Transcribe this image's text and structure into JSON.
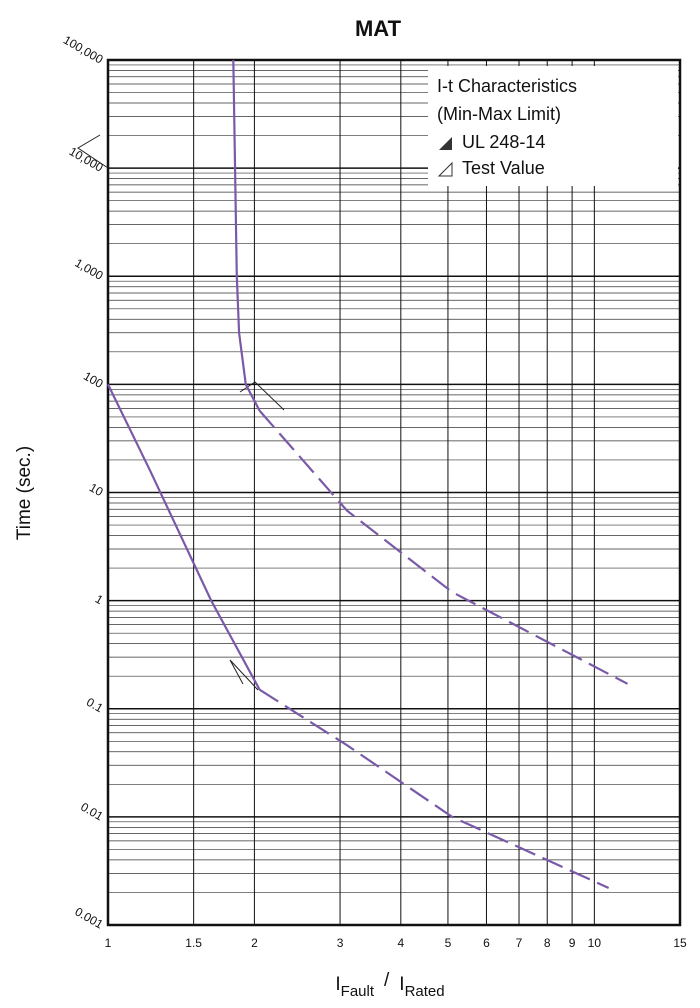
{
  "chart_data": {
    "type": "line",
    "title": "MAT",
    "ylabel": "Time (sec.)",
    "xlabel": {
      "i1": "I",
      "sub1": "Fault",
      "slash": "/",
      "i2": "I",
      "sub2": "Rated"
    },
    "xscale": "log",
    "yscale": "log",
    "xlim": [
      1,
      15
    ],
    "ylim": [
      0.001,
      100000
    ],
    "xticks": [
      1,
      1.5,
      2,
      3,
      4,
      5,
      6,
      7,
      8,
      9,
      10,
      15
    ],
    "yticks": [
      {
        "value": 100000,
        "label": "100,000"
      },
      {
        "value": 10000,
        "label": "10,000"
      },
      {
        "value": 1000,
        "label": "1,000"
      },
      100,
      10,
      1,
      0.1,
      0.01,
      0.001
    ],
    "grid": true,
    "legend": {
      "title": "I-t Characteristics",
      "subtitle": "(Min-Max Limit)",
      "items": [
        "UL 248-14",
        "Test Value"
      ]
    },
    "series": [
      {
        "color": "#7a5aa8",
        "style": "solid",
        "x": [
          1.81,
          1.84,
          1.86,
          1.92,
          2.05
        ],
        "values": [
          100000,
          1000,
          300,
          100,
          57
        ]
      },
      {
        "color": "#7a5aa8",
        "style": "dashed",
        "x": [
          2.05,
          3.1,
          5.1,
          11.7
        ],
        "values": [
          57,
          6.8,
          1.2,
          0.17
        ]
      },
      {
        "color": "#7a5aa8",
        "style": "solid",
        "x": [
          1,
          1.22,
          1.63,
          2.05
        ],
        "values": [
          100,
          16,
          1,
          0.15
        ]
      },
      {
        "color": "#7a5aa8",
        "style": "dashed",
        "x": [
          2.05,
          3.1,
          5.1,
          10.7
        ],
        "values": [
          0.15,
          0.046,
          0.01,
          0.0022
        ]
      }
    ]
  }
}
